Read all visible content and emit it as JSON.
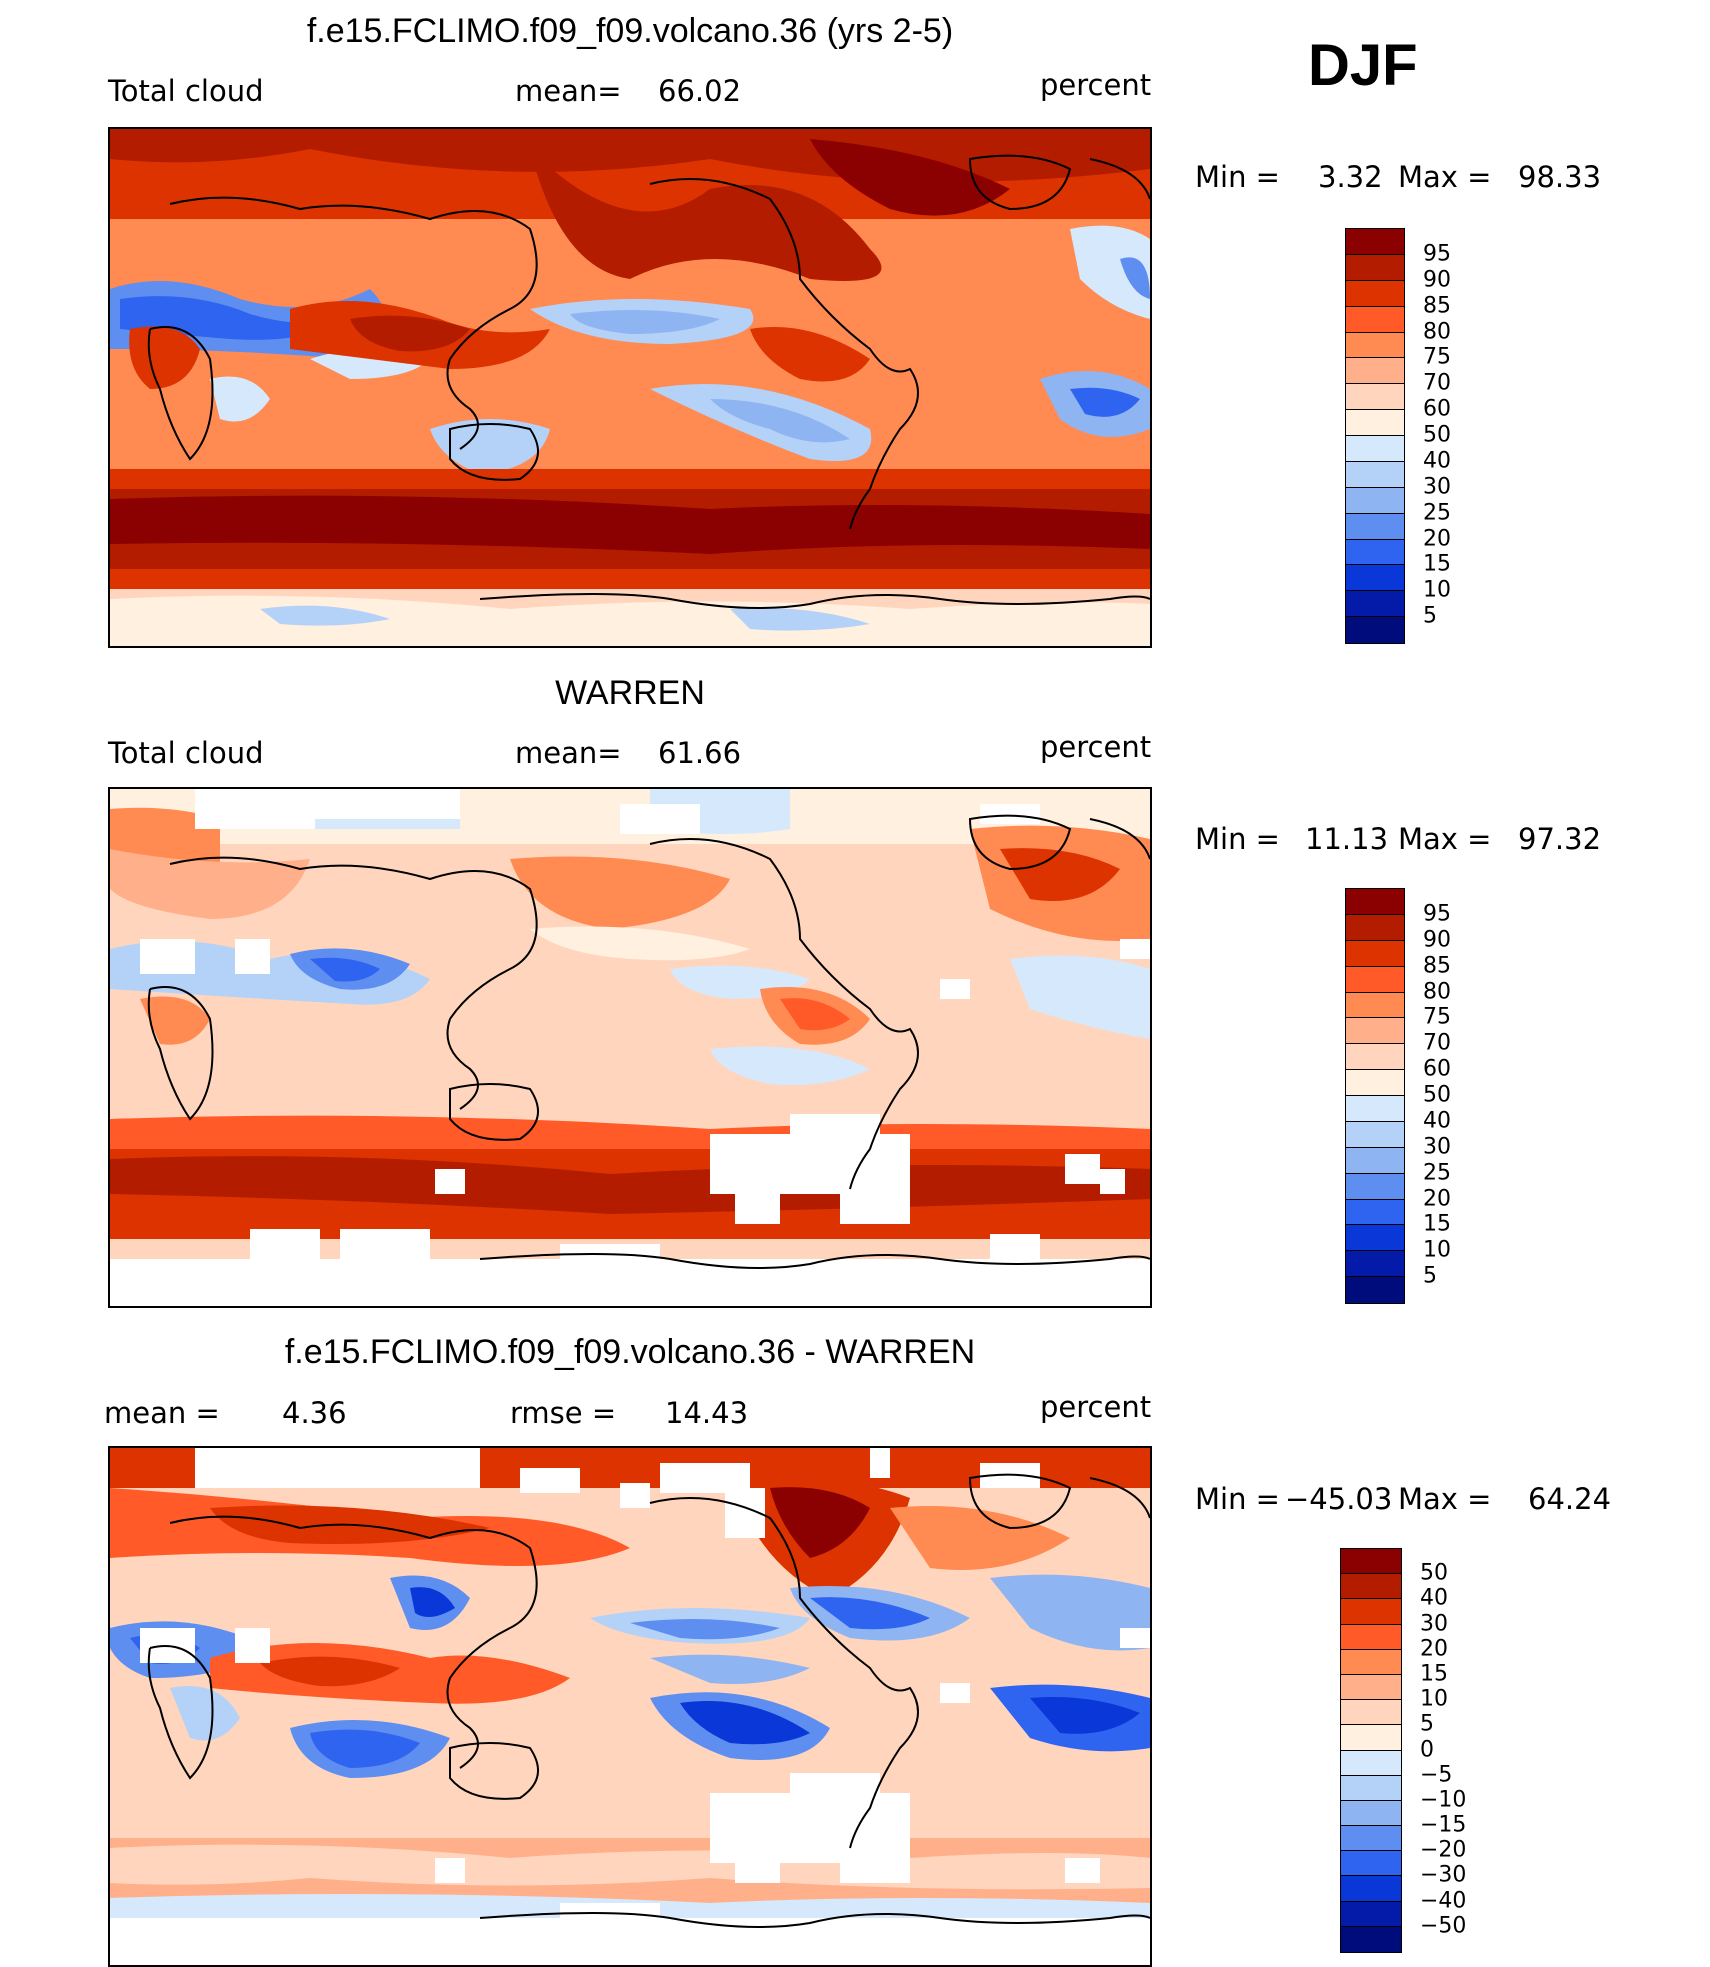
{
  "season": "DJF",
  "units": "percent",
  "colors": {
    "absolute": [
      "#8b0000",
      "#b41c00",
      "#dc3300",
      "#ff5a28",
      "#ff8a52",
      "#ffb08a",
      "#ffd6bd",
      "#fff0e0",
      "#d6e8fb",
      "#b4d2f8",
      "#8fb4f2",
      "#5e8ef0",
      "#2f64f0",
      "#0a37d8",
      "#041aa8",
      "#000b7c"
    ],
    "difference": [
      "#8b0000",
      "#b41c00",
      "#dc3300",
      "#ff5a28",
      "#ff8a52",
      "#ffb08a",
      "#ffd6bd",
      "#fff0e0",
      "#d6e8fb",
      "#b4d2f8",
      "#8fb4f2",
      "#5e8ef0",
      "#2f64f0",
      "#0a37d8",
      "#041aa8",
      "#000b7c"
    ],
    "missing": "#ffffff"
  },
  "panels": [
    {
      "title": "f.e15.FCLIMO.f09_f09.volcano.36 (yrs 2-5)",
      "left_label": "Total cloud",
      "stat1_label": "mean=",
      "stat1_value": "66.02",
      "stat2_label": "",
      "stat2_value": "",
      "units": "percent",
      "min_label": "Min =",
      "min_value": "3.32",
      "max_label": "Max =",
      "max_value": "98.33",
      "colorbar_labels": [
        "95",
        "90",
        "85",
        "80",
        "75",
        "70",
        "60",
        "50",
        "40",
        "30",
        "25",
        "20",
        "15",
        "10",
        "5"
      ]
    },
    {
      "title": "WARREN",
      "left_label": "Total cloud",
      "stat1_label": "mean=",
      "stat1_value": "61.66",
      "stat2_label": "",
      "stat2_value": "",
      "units": "percent",
      "min_label": "Min =",
      "min_value": "11.13",
      "max_label": "Max =",
      "max_value": "97.32",
      "colorbar_labels": [
        "95",
        "90",
        "85",
        "80",
        "75",
        "70",
        "60",
        "50",
        "40",
        "30",
        "25",
        "20",
        "15",
        "10",
        "5"
      ]
    },
    {
      "title": "f.e15.FCLIMO.f09_f09.volcano.36 - WARREN",
      "left_label": "mean =",
      "stat1_label": "",
      "stat1_value": "4.36",
      "stat2_label": "rmse =",
      "stat2_value": "14.43",
      "units": "percent",
      "min_label": "Min =",
      "min_value": "−45.03",
      "max_label": "Max =",
      "max_value": "64.24",
      "colorbar_labels": [
        "50",
        "40",
        "30",
        "20",
        "15",
        "10",
        "5",
        "0",
        "−5",
        "−10",
        "−15",
        "−20",
        "−30",
        "−40",
        "−50"
      ]
    }
  ]
}
